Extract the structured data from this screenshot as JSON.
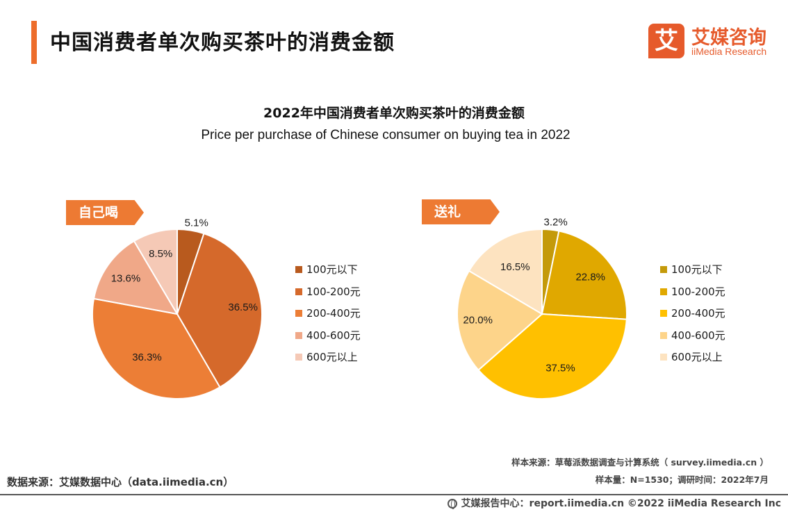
{
  "page": {
    "title": "中国消费者单次购买茶叶的消费金额",
    "logo_mark": "艾",
    "logo_cn": "艾媒咨询",
    "logo_en": "iiMedia Research",
    "source_left": "数据来源：艾媒数据中心（data.iimedia.cn）",
    "sample_source": "样本来源：草莓派数据调查与计算系统（ survey.iimedia.cn ）",
    "sample_size": "样本量：N=1530；调研时间：2022年7月",
    "footer": "艾媒报告中心：report.iimedia.cn  ©2022  iiMedia Research  Inc",
    "accent_color": "#ed6d2b"
  },
  "chart_data": [
    {
      "type": "pie",
      "title": "2022年中国消费者单次购买茶叶的消费金额",
      "subtitle": "Price per purchase of Chinese consumer on buying tea in 2022",
      "panel_label": "自己喝",
      "categories": [
        "100元以下",
        "100-200元",
        "200-400元",
        "400-600元",
        "600元以上"
      ],
      "values": [
        5.1,
        36.5,
        36.3,
        13.6,
        8.5
      ],
      "value_labels": [
        "5.1%",
        "36.5%",
        "36.3%",
        "13.6%",
        "8.5%"
      ],
      "colors": [
        "#b85a1e",
        "#d5692b",
        "#ec7e36",
        "#f0a888",
        "#f5c9b6"
      ],
      "legend_position": "right"
    },
    {
      "type": "pie",
      "panel_label": "送礼",
      "categories": [
        "100元以下",
        "100-200元",
        "200-400元",
        "400-600元",
        "600元以上"
      ],
      "values": [
        3.2,
        22.8,
        37.5,
        20.0,
        16.5
      ],
      "value_labels": [
        "3.2%",
        "22.8%",
        "37.5%",
        "20.0%",
        "16.5%"
      ],
      "colors": [
        "#c49a0a",
        "#e0a800",
        "#ffc000",
        "#fdd48a",
        "#fde3c0"
      ],
      "legend_position": "right"
    }
  ]
}
